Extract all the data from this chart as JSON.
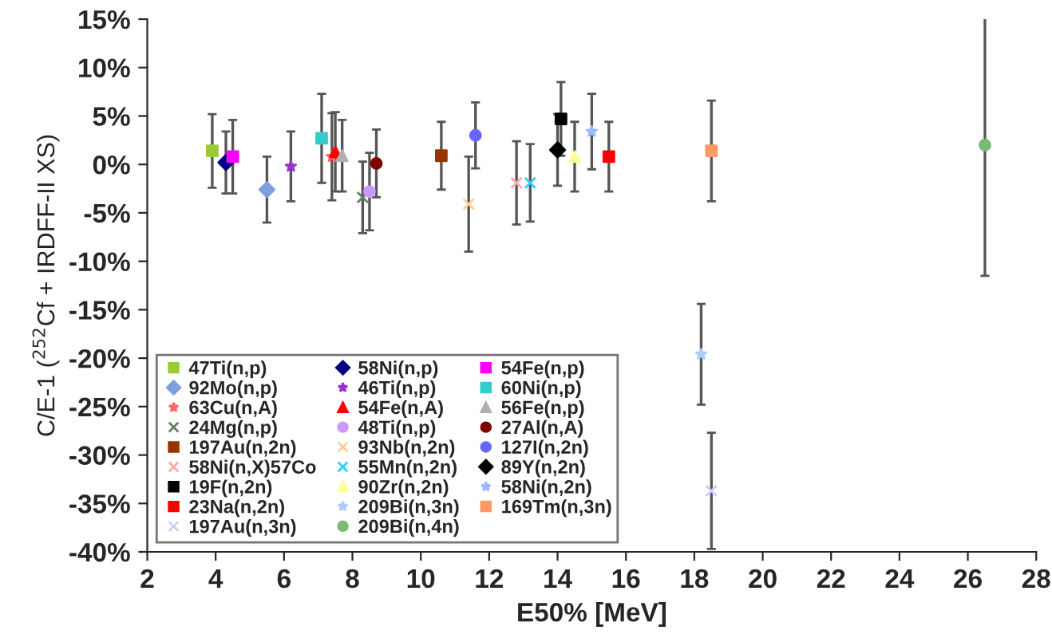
{
  "chart_data": {
    "type": "scatter",
    "xlabel": "E50% [MeV]",
    "ylabel": "C/E-1 ($^{252}$Cf + IRDFF-II XS)",
    "xlim": [
      2,
      28
    ],
    "xticks": [
      2,
      4,
      6,
      8,
      10,
      12,
      14,
      16,
      18,
      20,
      22,
      24,
      26,
      28
    ],
    "ylim": [
      -40,
      15
    ],
    "yticks": [
      {
        "value": 15,
        "label": "15%"
      },
      {
        "value": 10,
        "label": "10%"
      },
      {
        "value": 5,
        "label": "5%"
      },
      {
        "value": 0,
        "label": "0%"
      },
      {
        "value": -5,
        "label": "-5%"
      },
      {
        "value": -10,
        "label": "-10%"
      },
      {
        "value": -15,
        "label": "-15%"
      },
      {
        "value": -20,
        "label": "-20%"
      },
      {
        "value": -25,
        "label": "-25%"
      },
      {
        "value": -30,
        "label": "-30%"
      },
      {
        "value": -35,
        "label": "-35%"
      },
      {
        "value": -40,
        "label": "-40%"
      }
    ],
    "grid": false,
    "legend": "bottom left",
    "series": [
      {
        "name": "47Ti(n,p)",
        "color": "#99cc33",
        "marker": "square",
        "x": [
          3.9
        ],
        "values": [
          1.4
        ],
        "errors": [
          3.8
        ]
      },
      {
        "name": "58Ni(n,p)",
        "color": "#000080",
        "marker": "diamond",
        "x": [
          4.3
        ],
        "values": [
          0.2
        ],
        "errors": [
          3.2
        ]
      },
      {
        "name": "54Fe(n,p)",
        "color": "#ff00ff",
        "marker": "square",
        "x": [
          4.5
        ],
        "values": [
          0.8
        ],
        "errors": [
          3.8
        ]
      },
      {
        "name": "92Mo(n,p)",
        "color": "#7f9fdf",
        "marker": "diamond",
        "x": [
          5.5
        ],
        "values": [
          -2.6
        ],
        "errors": [
          3.4
        ]
      },
      {
        "name": "46Ti(n,p)",
        "color": "#9933cc",
        "marker": "star",
        "x": [
          6.2
        ],
        "values": [
          -0.2
        ],
        "errors": [
          3.6
        ]
      },
      {
        "name": "60Ni(n,p)",
        "color": "#33cccc",
        "marker": "square",
        "x": [
          7.1
        ],
        "values": [
          2.7
        ],
        "errors": [
          4.6
        ]
      },
      {
        "name": "63Cu(n,A)",
        "color": "#ff6666",
        "marker": "star",
        "x": [
          7.4
        ],
        "values": [
          0.8
        ],
        "errors": [
          4.5
        ]
      },
      {
        "name": "54Fe(n,A)",
        "color": "#ff0000",
        "marker": "triangle",
        "x": [
          7.5
        ],
        "values": [
          1.3
        ],
        "errors": [
          4.1
        ]
      },
      {
        "name": "56Fe(n,p)",
        "color": "#b0b0b0",
        "marker": "triangle",
        "x": [
          7.7
        ],
        "values": [
          0.9
        ],
        "errors": [
          3.7
        ]
      },
      {
        "name": "24Mg(n,p)",
        "color": "#668066",
        "marker": "cross",
        "x": [
          8.3
        ],
        "values": [
          -3.4
        ],
        "errors": [
          3.7
        ]
      },
      {
        "name": "48Ti(n,p)",
        "color": "#cc99ff",
        "marker": "circle",
        "x": [
          8.5
        ],
        "values": [
          -2.8
        ],
        "errors": [
          4.0
        ]
      },
      {
        "name": "27Al(n,A)",
        "color": "#800000",
        "marker": "circle",
        "x": [
          8.7
        ],
        "values": [
          0.1
        ],
        "errors": [
          3.5
        ]
      },
      {
        "name": "197Au(n,2n)",
        "color": "#993300",
        "marker": "square",
        "x": [
          10.6
        ],
        "values": [
          0.9
        ],
        "errors": [
          3.5
        ]
      },
      {
        "name": "93Nb(n,2n)",
        "color": "#ffcc99",
        "marker": "cross",
        "x": [
          11.4
        ],
        "values": [
          -4.1
        ],
        "errors": [
          4.9
        ]
      },
      {
        "name": "127I(n,2n)",
        "color": "#6666ff",
        "marker": "circle",
        "x": [
          11.6
        ],
        "values": [
          3.0
        ],
        "errors": [
          3.4
        ]
      },
      {
        "name": "58Ni(n,X)57Co",
        "color": "#ffaaaa",
        "marker": "cross",
        "x": [
          12.8
        ],
        "values": [
          -1.9
        ],
        "errors": [
          4.3
        ]
      },
      {
        "name": "55Mn(n,2n)",
        "color": "#33ccff",
        "marker": "cross",
        "x": [
          13.2
        ],
        "values": [
          -1.9
        ],
        "errors": [
          4.0
        ]
      },
      {
        "name": "89Y(n,2n)",
        "color": "#000000",
        "marker": "diamond",
        "x": [
          14.0
        ],
        "values": [
          1.5
        ],
        "errors": [
          3.7
        ]
      },
      {
        "name": "19F(n,2n)",
        "color": "#000000",
        "marker": "square",
        "x": [
          14.1
        ],
        "values": [
          4.7
        ],
        "errors": [
          3.8
        ]
      },
      {
        "name": "90Zr(n,2n)",
        "color": "#ffff99",
        "marker": "triangle",
        "x": [
          14.5
        ],
        "values": [
          0.8
        ],
        "errors": [
          3.6
        ]
      },
      {
        "name": "58Ni(n,2n)",
        "color": "#99bbff",
        "marker": "star",
        "x": [
          15.0
        ],
        "values": [
          3.4
        ],
        "errors": [
          3.9
        ]
      },
      {
        "name": "23Na(n,2n)",
        "color": "#ff0000",
        "marker": "square",
        "x": [
          15.5
        ],
        "values": [
          0.8
        ],
        "errors": [
          3.6
        ]
      },
      {
        "name": "209Bi(n,3n)",
        "color": "#aaccff",
        "marker": "star",
        "x": [
          18.2
        ],
        "values": [
          -19.6
        ],
        "errors": [
          5.2
        ]
      },
      {
        "name": "169Tm(n,3n)",
        "color": "#ff9966",
        "marker": "square",
        "x": [
          18.5
        ],
        "values": [
          1.4
        ],
        "errors": [
          5.2
        ]
      },
      {
        "name": "197Au(n,3n)",
        "color": "#ccccff",
        "marker": "cross",
        "x": [
          18.5
        ],
        "values": [
          -33.7
        ],
        "errors": [
          6.0
        ]
      },
      {
        "name": "209Bi(n,4n)",
        "color": "#77bb77",
        "marker": "circle",
        "x": [
          26.5
        ],
        "values": [
          2.0
        ],
        "errors": [
          13.5
        ]
      }
    ]
  }
}
